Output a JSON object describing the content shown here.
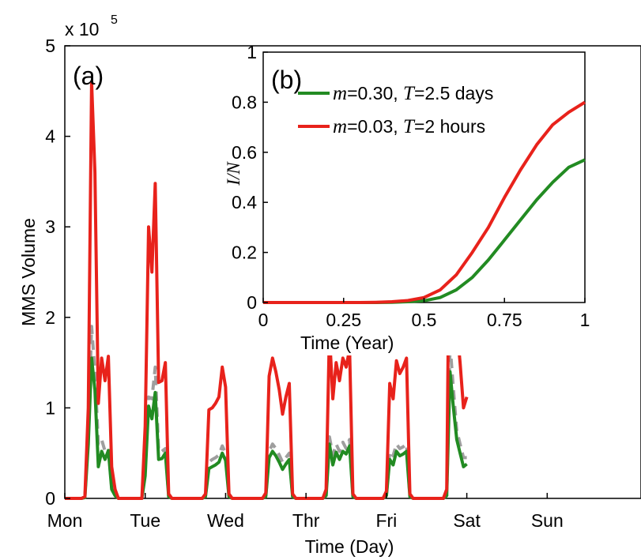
{
  "chart_data": [
    {
      "panel": "(a)",
      "type": "line",
      "xlabel": "Time (Day)",
      "ylabel": "MMS Volume",
      "y_multiplier": "x 10",
      "y_exponent": "5",
      "ylim": [
        0,
        500000
      ],
      "yticks": [
        0,
        1,
        2,
        3,
        4,
        5
      ],
      "x_step": 1,
      "xlim": [
        0,
        172
      ],
      "xtick_positions": [
        0,
        24,
        48,
        72,
        96,
        120,
        144
      ],
      "xtick_labels": [
        "Mon",
        "Tue",
        "Wed",
        "Thr",
        "Fri",
        "Sat",
        "Sun"
      ],
      "grid": false,
      "series": [
        {
          "color": "#e8221b",
          "dash": false,
          "values": [
            0,
            0,
            0,
            0,
            0,
            0,
            2000,
            100000,
            460000,
            360000,
            105000,
            155000,
            130000,
            157000,
            35000,
            10000,
            0,
            0,
            0,
            0,
            0,
            0,
            0,
            0,
            80000,
            300000,
            250000,
            348000,
            128000,
            130000,
            150000,
            5000,
            0,
            0,
            0,
            0,
            0,
            0,
            0,
            0,
            0,
            0,
            5000,
            98000,
            100000,
            105000,
            112000,
            145000,
            123000,
            5000,
            0,
            0,
            0,
            0,
            0,
            0,
            0,
            0,
            0,
            0,
            6000,
            135000,
            155000,
            140000,
            120000,
            93000,
            112000,
            127000,
            5000,
            0,
            0,
            0,
            0,
            0,
            0,
            0,
            0,
            0,
            10000,
            183000,
            110000,
            150000,
            130000,
            155000,
            145000,
            165000,
            5000,
            0,
            0,
            0,
            0,
            0,
            0,
            0,
            0,
            0,
            8000,
            127000,
            110000,
            152000,
            138000,
            145000,
            155000,
            5000,
            0,
            0,
            0,
            0,
            0,
            0,
            0,
            0,
            0,
            0,
            10000,
            375000,
            300000,
            190000,
            150000,
            100000,
            112000
          ]
        },
        {
          "color": "#228b22",
          "dash": false,
          "values": [
            0,
            0,
            0,
            0,
            0,
            0,
            1000,
            60000,
            155000,
            120000,
            35000,
            52000,
            43000,
            53000,
            10000,
            3000,
            0,
            0,
            0,
            0,
            0,
            0,
            0,
            0,
            25000,
            102000,
            88000,
            117000,
            43000,
            44000,
            50000,
            2000,
            0,
            0,
            0,
            0,
            0,
            0,
            0,
            0,
            0,
            0,
            2000,
            33000,
            35000,
            37000,
            40000,
            50000,
            42000,
            2000,
            0,
            0,
            0,
            0,
            0,
            0,
            0,
            0,
            0,
            0,
            2000,
            45000,
            52000,
            47000,
            40000,
            32000,
            38000,
            43000,
            2000,
            0,
            0,
            0,
            0,
            0,
            0,
            0,
            0,
            0,
            3000,
            60000,
            37000,
            51000,
            43000,
            52000,
            49000,
            58000,
            2000,
            0,
            0,
            0,
            0,
            0,
            0,
            0,
            0,
            0,
            3000,
            43000,
            37000,
            52000,
            47000,
            49000,
            52000,
            2000,
            0,
            0,
            0,
            0,
            0,
            0,
            0,
            0,
            0,
            0,
            3000,
            140000,
            100000,
            65000,
            50000,
            35000,
            38000
          ]
        },
        {
          "color": "#9e9e9e",
          "dash": true,
          "values": [
            0,
            0,
            0,
            0,
            0,
            0,
            1000,
            70000,
            190000,
            140000,
            60000,
            65000,
            52000,
            55000,
            12000,
            3000,
            0,
            0,
            0,
            0,
            0,
            0,
            0,
            0,
            30000,
            112000,
            110000,
            145000,
            52000,
            52000,
            55000,
            2000,
            0,
            0,
            0,
            0,
            0,
            0,
            0,
            0,
            0,
            0,
            2000,
            40000,
            43000,
            45000,
            48000,
            58000,
            50000,
            2000,
            0,
            0,
            0,
            0,
            0,
            0,
            0,
            0,
            0,
            0,
            2000,
            52000,
            60000,
            55000,
            48000,
            40000,
            45000,
            50000,
            2000,
            0,
            0,
            0,
            0,
            0,
            0,
            0,
            0,
            0,
            3000,
            68000,
            48000,
            60000,
            52000,
            62000,
            55000,
            65000,
            2000,
            0,
            0,
            0,
            0,
            0,
            0,
            0,
            0,
            0,
            3000,
            52000,
            47000,
            60000,
            55000,
            57000,
            60000,
            2000,
            0,
            0,
            0,
            0,
            0,
            0,
            0,
            0,
            0,
            0,
            3000,
            170000,
            120000,
            75000,
            60000,
            45000,
            45000
          ]
        }
      ]
    },
    {
      "panel": "(b)",
      "type": "line",
      "xlabel": "Time (Year)",
      "ylabel": "I/N",
      "xlim": [
        0,
        1
      ],
      "ylim": [
        0,
        1
      ],
      "xticks": [
        0,
        0.25,
        0.5,
        0.75,
        1
      ],
      "xtick_labels": [
        "0",
        "0.25",
        "0.5",
        "0.75",
        "1"
      ],
      "yticks": [
        0,
        0.2,
        0.4,
        0.6,
        0.8,
        1
      ],
      "ytick_labels": [
        "0",
        "0.2",
        "0.4",
        "0.6",
        "0.8",
        "1"
      ],
      "grid": false,
      "legend_placement": "top",
      "series": [
        {
          "color": "#228b22",
          "m_symbol": "m",
          "m_value": "=0.30, ",
          "t_symbol": "T",
          "t_value": "=2.5  days",
          "x": [
            0,
            0.05,
            0.1,
            0.15,
            0.2,
            0.25,
            0.3,
            0.35,
            0.4,
            0.45,
            0.5,
            0.55,
            0.6,
            0.65,
            0.7,
            0.75,
            0.8,
            0.85,
            0.9,
            0.95,
            1.0
          ],
          "y": [
            0,
            0,
            0,
            0,
            0,
            0,
            0,
            0,
            0.001,
            0.003,
            0.007,
            0.02,
            0.05,
            0.1,
            0.17,
            0.25,
            0.33,
            0.41,
            0.48,
            0.54,
            0.57
          ]
        },
        {
          "color": "#e8221b",
          "m_symbol": "m",
          "m_value": "=0.03, ",
          "t_symbol": "T",
          "t_value": "=2 hours",
          "x": [
            0,
            0.05,
            0.1,
            0.15,
            0.2,
            0.25,
            0.3,
            0.35,
            0.4,
            0.45,
            0.5,
            0.55,
            0.6,
            0.65,
            0.7,
            0.75,
            0.8,
            0.85,
            0.9,
            0.95,
            1.0
          ],
          "y": [
            0,
            0,
            0,
            0,
            0,
            0,
            0,
            0.001,
            0.003,
            0.008,
            0.02,
            0.05,
            0.11,
            0.2,
            0.3,
            0.42,
            0.53,
            0.63,
            0.71,
            0.76,
            0.8
          ]
        }
      ]
    }
  ]
}
